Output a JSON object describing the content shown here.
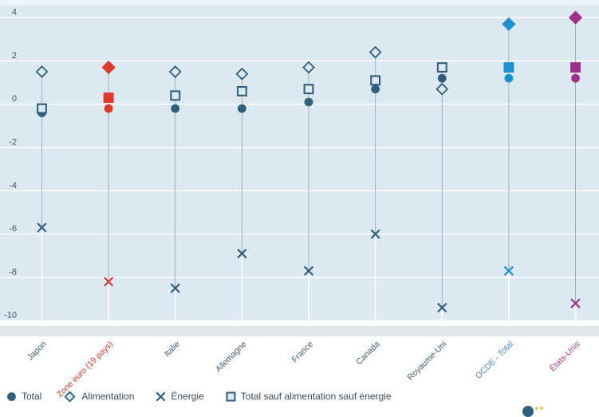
{
  "chart_data": {
    "type": "scatter",
    "title": "",
    "xlabel": "",
    "ylabel": "",
    "categories": [
      "Japon",
      "Zone euro (19 pays)",
      "Italie",
      "Allemagne",
      "France",
      "Canada",
      "Royaume-Uni",
      "OCDE - Total",
      "États-Unis"
    ],
    "category_marker_colors": [
      "#2f5f7c",
      "#e1382d",
      "#2f5f7c",
      "#2f5f7c",
      "#2f5f7c",
      "#2f5f7c",
      "#2f5f7c",
      "#1e8fd3",
      "#a02d8c"
    ],
    "category_label_colors": [
      "#3d5b70",
      "#e1382d",
      "#3d5b70",
      "#3d5b70",
      "#3d5b70",
      "#3d5b70",
      "#3d5b70",
      "#4a8cce",
      "#a5418f"
    ],
    "category_filled": [
      false,
      true,
      false,
      false,
      false,
      false,
      false,
      true,
      true
    ],
    "series": [
      {
        "name": "Total",
        "marker": "circle-filled",
        "values": [
          -0.4,
          -0.2,
          -0.2,
          -0.2,
          0.1,
          0.7,
          1.2,
          1.2,
          1.2
        ]
      },
      {
        "name": "Alimentation",
        "marker": "diamond-open",
        "values": [
          1.5,
          1.7,
          1.5,
          1.4,
          1.7,
          2.4,
          0.7,
          3.7,
          4.0
        ]
      },
      {
        "name": "Énergie",
        "marker": "x-cross",
        "values": [
          -5.7,
          -8.2,
          -8.5,
          -6.9,
          -7.7,
          -6.0,
          -9.4,
          -7.7,
          -9.2
        ]
      },
      {
        "name": "Total sauf alimentation sauf énergie",
        "marker": "square-open",
        "values": [
          -0.2,
          0.3,
          0.4,
          0.6,
          0.7,
          1.1,
          1.7,
          1.7,
          1.7
        ]
      }
    ],
    "y_axis": {
      "ticks": [
        4,
        2,
        0,
        -2,
        -4,
        -6,
        -8,
        -10
      ],
      "min": -10,
      "max": 4
    },
    "grid": true,
    "legend_position": "bottom"
  },
  "colors": {
    "plot_background": "#dde9f0",
    "top_strip": "#ecf3f7",
    "scrollbar_band": "#e3e8eb",
    "gridline": "#ffffff",
    "series_default": "#2f5f7c",
    "zone_euro_accent": "#e1382d",
    "ocde_accent": "#1e8fd3",
    "etats_unis_accent": "#a02d8c",
    "stem": "#9db0bc",
    "tick_label": "#3d5466",
    "legend_text": "#374a59",
    "logo_navy": "#2f5f7c",
    "logo_yellow": "#cdd465"
  }
}
